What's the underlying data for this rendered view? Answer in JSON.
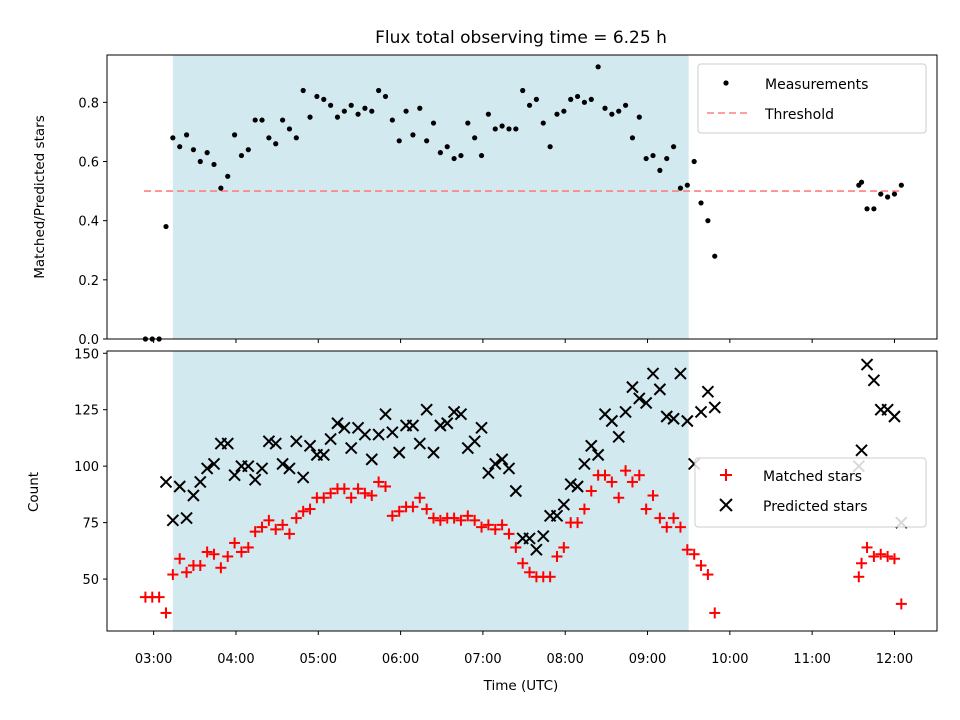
{
  "chart_data": {
    "title": "Flux total observing time = 6.25 h",
    "type": "scatter",
    "shaded_region": {
      "x_start": "03:14",
      "x_end": "09:30",
      "color": "#d3e9f0"
    },
    "xlabel": "Time (UTC)",
    "x_ticks": [
      "03:00",
      "04:00",
      "05:00",
      "06:00",
      "07:00",
      "08:00",
      "09:00",
      "10:00",
      "11:00",
      "12:00"
    ],
    "xlim": [
      "02:26",
      "12:31"
    ],
    "top": {
      "ylabel": "Matched/Predicted stars",
      "ylim": [
        0,
        0.96
      ],
      "y_ticks": [
        "0.0",
        "0.2",
        "0.4",
        "0.6",
        "0.8"
      ],
      "legend": [
        "Measurements",
        "Threshold"
      ],
      "legend_position": "top-right",
      "threshold": {
        "value": 0.5,
        "x_start": "02:53",
        "x_end": "12:05",
        "color": "#ff7f7f"
      },
      "measurements": [
        [
          "02:54",
          0
        ],
        [
          "02:59",
          0
        ],
        [
          "03:04",
          0
        ],
        [
          "03:09",
          0.38
        ],
        [
          "03:14",
          0.68
        ],
        [
          "03:19",
          0.65
        ],
        [
          "03:24",
          0.69
        ],
        [
          "03:29",
          0.64
        ],
        [
          "03:34",
          0.6
        ],
        [
          "03:39",
          0.63
        ],
        [
          "03:44",
          0.59
        ],
        [
          "03:49",
          0.51
        ],
        [
          "03:54",
          0.55
        ],
        [
          "03:59",
          0.69
        ],
        [
          "04:04",
          0.62
        ],
        [
          "04:09",
          0.64
        ],
        [
          "04:14",
          0.74
        ],
        [
          "04:19",
          0.74
        ],
        [
          "04:24",
          0.68
        ],
        [
          "04:29",
          0.66
        ],
        [
          "04:34",
          0.74
        ],
        [
          "04:39",
          0.71
        ],
        [
          "04:44",
          0.68
        ],
        [
          "04:49",
          0.84
        ],
        [
          "04:54",
          0.75
        ],
        [
          "04:59",
          0.82
        ],
        [
          "05:04",
          0.81
        ],
        [
          "05:09",
          0.79
        ],
        [
          "05:14",
          0.75
        ],
        [
          "05:19",
          0.77
        ],
        [
          "05:24",
          0.79
        ],
        [
          "05:29",
          0.76
        ],
        [
          "05:34",
          0.78
        ],
        [
          "05:39",
          0.77
        ],
        [
          "05:44",
          0.84
        ],
        [
          "05:49",
          0.82
        ],
        [
          "05:54",
          0.74
        ],
        [
          "05:59",
          0.67
        ],
        [
          "06:04",
          0.77
        ],
        [
          "06:09",
          0.69
        ],
        [
          "06:14",
          0.78
        ],
        [
          "06:19",
          0.67
        ],
        [
          "06:24",
          0.73
        ],
        [
          "06:29",
          0.63
        ],
        [
          "06:34",
          0.65
        ],
        [
          "06:39",
          0.61
        ],
        [
          "06:44",
          0.62
        ],
        [
          "06:49",
          0.73
        ],
        [
          "06:54",
          0.68
        ],
        [
          "06:59",
          0.62
        ],
        [
          "07:04",
          0.76
        ],
        [
          "07:09",
          0.71
        ],
        [
          "07:14",
          0.72
        ],
        [
          "07:19",
          0.71
        ],
        [
          "07:24",
          0.71
        ],
        [
          "07:29",
          0.84
        ],
        [
          "07:34",
          0.79
        ],
        [
          "07:39",
          0.81
        ],
        [
          "07:44",
          0.73
        ],
        [
          "07:49",
          0.65
        ],
        [
          "07:54",
          0.76
        ],
        [
          "07:59",
          0.77
        ],
        [
          "08:04",
          0.81
        ],
        [
          "08:09",
          0.82
        ],
        [
          "08:14",
          0.8
        ],
        [
          "08:19",
          0.81
        ],
        [
          "08:24",
          0.92
        ],
        [
          "08:29",
          0.78
        ],
        [
          "08:34",
          0.76
        ],
        [
          "08:39",
          0.77
        ],
        [
          "08:44",
          0.79
        ],
        [
          "08:49",
          0.68
        ],
        [
          "08:54",
          0.75
        ],
        [
          "08:59",
          0.61
        ],
        [
          "09:04",
          0.62
        ],
        [
          "09:09",
          0.57
        ],
        [
          "09:14",
          0.61
        ],
        [
          "09:19",
          0.65
        ],
        [
          "09:24",
          0.51
        ],
        [
          "09:29",
          0.52
        ],
        [
          "09:34",
          0.6
        ],
        [
          "09:39",
          0.46
        ],
        [
          "09:44",
          0.4
        ],
        [
          "09:49",
          0.28
        ],
        [
          "11:34",
          0.52
        ],
        [
          "11:36",
          0.53
        ],
        [
          "11:40",
          0.44
        ],
        [
          "11:45",
          0.44
        ],
        [
          "11:50",
          0.49
        ],
        [
          "11:55",
          0.48
        ],
        [
          "12:00",
          0.49
        ],
        [
          "12:05",
          0.52
        ]
      ]
    },
    "bottom": {
      "ylabel": "Count",
      "ylim": [
        27,
        151
      ],
      "y_ticks": [
        "50",
        "75",
        "100",
        "125",
        "150"
      ],
      "legend": [
        "Matched stars",
        "Predicted stars"
      ],
      "legend_position": "center-right",
      "series": [
        {
          "name": "Matched stars",
          "color": "#ff0000",
          "marker": "plus",
          "points": [
            [
              "02:54",
              42
            ],
            [
              "02:59",
              42
            ],
            [
              "03:04",
              42
            ],
            [
              "03:09",
              35
            ],
            [
              "03:14",
              52
            ],
            [
              "03:19",
              59
            ],
            [
              "03:24",
              53
            ],
            [
              "03:29",
              56
            ],
            [
              "03:34",
              56
            ],
            [
              "03:39",
              62
            ],
            [
              "03:44",
              61
            ],
            [
              "03:49",
              55
            ],
            [
              "03:54",
              60
            ],
            [
              "03:59",
              66
            ],
            [
              "04:04",
              62
            ],
            [
              "04:09",
              64
            ],
            [
              "04:14",
              71
            ],
            [
              "04:19",
              73
            ],
            [
              "04:24",
              76
            ],
            [
              "04:29",
              72
            ],
            [
              "04:34",
              74
            ],
            [
              "04:39",
              70
            ],
            [
              "04:44",
              77
            ],
            [
              "04:49",
              80
            ],
            [
              "04:54",
              81
            ],
            [
              "04:59",
              86
            ],
            [
              "05:04",
              86
            ],
            [
              "05:09",
              88
            ],
            [
              "05:14",
              90
            ],
            [
              "05:19",
              90
            ],
            [
              "05:24",
              86
            ],
            [
              "05:29",
              90
            ],
            [
              "05:34",
              88
            ],
            [
              "05:39",
              87
            ],
            [
              "05:44",
              93
            ],
            [
              "05:49",
              91
            ],
            [
              "05:54",
              78
            ],
            [
              "05:59",
              80
            ],
            [
              "06:04",
              82
            ],
            [
              "06:09",
              82
            ],
            [
              "06:14",
              86
            ],
            [
              "06:19",
              81
            ],
            [
              "06:24",
              77
            ],
            [
              "06:29",
              76
            ],
            [
              "06:34",
              77
            ],
            [
              "06:39",
              77
            ],
            [
              "06:44",
              76
            ],
            [
              "06:49",
              78
            ],
            [
              "06:54",
              76
            ],
            [
              "06:59",
              73
            ],
            [
              "07:04",
              74
            ],
            [
              "07:09",
              72
            ],
            [
              "07:14",
              74
            ],
            [
              "07:19",
              70
            ],
            [
              "07:24",
              64
            ],
            [
              "07:29",
              57
            ],
            [
              "07:34",
              53
            ],
            [
              "07:39",
              51
            ],
            [
              "07:44",
              51
            ],
            [
              "07:49",
              51
            ],
            [
              "07:54",
              60
            ],
            [
              "07:59",
              64
            ],
            [
              "08:04",
              75
            ],
            [
              "08:09",
              75
            ],
            [
              "08:14",
              81
            ],
            [
              "08:19",
              89
            ],
            [
              "08:24",
              96
            ],
            [
              "08:29",
              96
            ],
            [
              "08:34",
              93
            ],
            [
              "08:39",
              86
            ],
            [
              "08:44",
              98
            ],
            [
              "08:49",
              93
            ],
            [
              "08:54",
              96
            ],
            [
              "08:59",
              81
            ],
            [
              "09:04",
              87
            ],
            [
              "09:09",
              77
            ],
            [
              "09:14",
              73
            ],
            [
              "09:19",
              77
            ],
            [
              "09:24",
              73
            ],
            [
              "09:29",
              63
            ],
            [
              "09:34",
              61
            ],
            [
              "09:39",
              56
            ],
            [
              "09:44",
              52
            ],
            [
              "09:49",
              35
            ],
            [
              "11:34",
              51
            ],
            [
              "11:36",
              57
            ],
            [
              "11:40",
              64
            ],
            [
              "11:45",
              60
            ],
            [
              "11:50",
              61
            ],
            [
              "11:55",
              60
            ],
            [
              "12:00",
              59
            ],
            [
              "12:05",
              39
            ]
          ]
        },
        {
          "name": "Predicted stars",
          "color": "#000000",
          "marker": "x",
          "points": [
            [
              "03:09",
              93
            ],
            [
              "03:14",
              76
            ],
            [
              "03:19",
              91
            ],
            [
              "03:24",
              77
            ],
            [
              "03:29",
              87
            ],
            [
              "03:34",
              93
            ],
            [
              "03:39",
              99
            ],
            [
              "03:44",
              101
            ],
            [
              "03:49",
              110
            ],
            [
              "03:54",
              110
            ],
            [
              "03:59",
              96
            ],
            [
              "04:04",
              100
            ],
            [
              "04:09",
              100
            ],
            [
              "04:14",
              94
            ],
            [
              "04:19",
              99
            ],
            [
              "04:24",
              111
            ],
            [
              "04:29",
              110
            ],
            [
              "04:34",
              101
            ],
            [
              "04:39",
              99
            ],
            [
              "04:44",
              111
            ],
            [
              "04:49",
              95
            ],
            [
              "04:54",
              109
            ],
            [
              "04:59",
              105
            ],
            [
              "05:04",
              105
            ],
            [
              "05:09",
              112
            ],
            [
              "05:14",
              119
            ],
            [
              "05:19",
              117
            ],
            [
              "05:24",
              108
            ],
            [
              "05:29",
              117
            ],
            [
              "05:34",
              114
            ],
            [
              "05:39",
              103
            ],
            [
              "05:44",
              114
            ],
            [
              "05:49",
              123
            ],
            [
              "05:54",
              115
            ],
            [
              "05:59",
              106
            ],
            [
              "06:04",
              118
            ],
            [
              "06:09",
              118
            ],
            [
              "06:14",
              110
            ],
            [
              "06:19",
              125
            ],
            [
              "06:24",
              106
            ],
            [
              "06:29",
              118
            ],
            [
              "06:34",
              119
            ],
            [
              "06:39",
              124
            ],
            [
              "06:44",
              123
            ],
            [
              "06:49",
              108
            ],
            [
              "06:54",
              111
            ],
            [
              "06:59",
              117
            ],
            [
              "07:04",
              97
            ],
            [
              "07:09",
              101
            ],
            [
              "07:14",
              103
            ],
            [
              "07:19",
              99
            ],
            [
              "07:24",
              89
            ],
            [
              "07:29",
              68
            ],
            [
              "07:34",
              68
            ],
            [
              "07:39",
              63
            ],
            [
              "07:44",
              69
            ],
            [
              "07:49",
              78
            ],
            [
              "07:54",
              78
            ],
            [
              "07:59",
              83
            ],
            [
              "08:04",
              92
            ],
            [
              "08:09",
              91
            ],
            [
              "08:14",
              101
            ],
            [
              "08:19",
              109
            ],
            [
              "08:24",
              105
            ],
            [
              "08:29",
              123
            ],
            [
              "08:34",
              120
            ],
            [
              "08:39",
              113
            ],
            [
              "08:44",
              124
            ],
            [
              "08:49",
              135
            ],
            [
              "08:54",
              130
            ],
            [
              "08:59",
              128
            ],
            [
              "09:04",
              141
            ],
            [
              "09:09",
              134
            ],
            [
              "09:14",
              122
            ],
            [
              "09:19",
              121
            ],
            [
              "09:24",
              141
            ],
            [
              "09:29",
              120
            ],
            [
              "09:34",
              101
            ],
            [
              "09:39",
              124
            ],
            [
              "09:44",
              133
            ],
            [
              "09:49",
              126
            ],
            [
              "11:34",
              100
            ],
            [
              "11:36",
              107
            ],
            [
              "11:40",
              145
            ],
            [
              "11:45",
              138
            ],
            [
              "11:50",
              125
            ],
            [
              "11:55",
              125
            ],
            [
              "12:00",
              122
            ],
            [
              "12:05",
              75
            ]
          ]
        }
      ]
    }
  }
}
